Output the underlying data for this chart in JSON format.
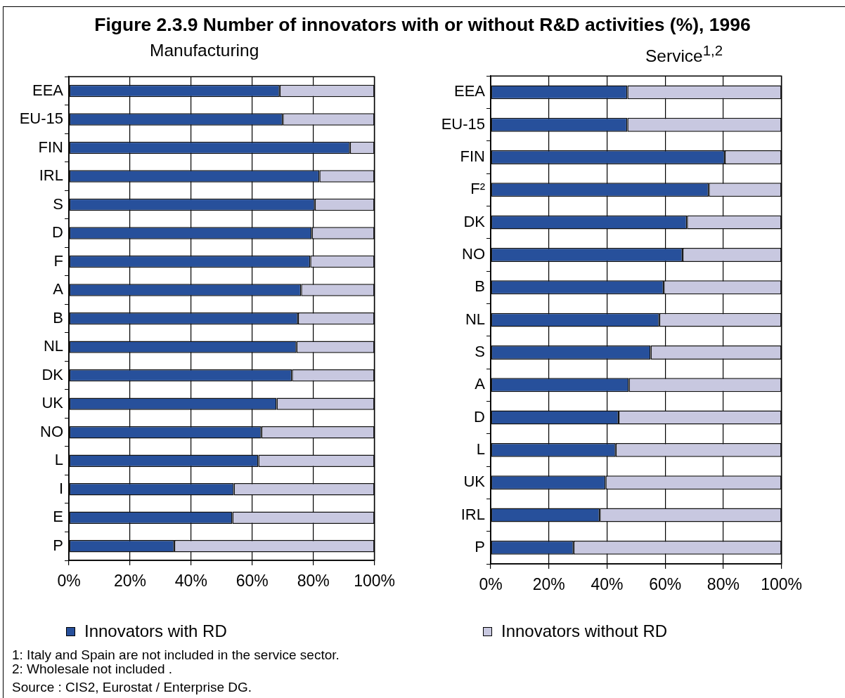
{
  "chart_data": [
    {
      "type": "bar",
      "title": "Figure 2.3.9 Number of innovators with or without R&D activities (%), 1996",
      "subtitle": "Manufacturing",
      "orientation": "horizontal",
      "stacked": true,
      "categories": [
        "EEA",
        "EU-15",
        "FIN",
        "IRL",
        "S",
        "D",
        "F",
        "A",
        "B",
        "NL",
        "DK",
        "UK",
        "NO",
        "L",
        "I",
        "E",
        "P"
      ],
      "series": [
        {
          "name": "Innovators with RD",
          "color": "#27509b",
          "values": [
            69,
            70,
            92,
            82,
            80.5,
            79.5,
            79,
            76,
            75,
            74.5,
            73,
            68,
            63,
            62,
            54,
            53.5,
            34.5
          ]
        },
        {
          "name": "Innovators without RD",
          "color": "#c8c8e0",
          "values": [
            31,
            30,
            8,
            18,
            19.5,
            20.5,
            21,
            24,
            25,
            25.5,
            27,
            32,
            37,
            38,
            46,
            46.5,
            65.5
          ]
        }
      ],
      "xlim": [
        0,
        100
      ],
      "xticks": [
        {
          "value": 0,
          "label": "0%"
        },
        {
          "value": 20,
          "label": "20%"
        },
        {
          "value": 40,
          "label": "40%"
        },
        {
          "value": 60,
          "label": "60%"
        },
        {
          "value": 80,
          "label": "80%"
        },
        {
          "value": 100,
          "label": "100%"
        }
      ],
      "grid": "x",
      "legend": "bottom",
      "annotations": [
        "1: Italy and Spain are not included in the service sector.",
        "2: Wholesale not included .",
        "Source : CIS2, Eurostat / Enterprise DG."
      ]
    },
    {
      "type": "bar",
      "subtitle": "Service$^{1,2}$",
      "orientation": "horizontal",
      "stacked": true,
      "categories": [
        "EEA",
        "EU-15",
        "FIN",
        "F²",
        "DK",
        "NO",
        "B",
        "NL",
        "S",
        "A",
        "D",
        "L",
        "UK",
        "IRL",
        "P"
      ],
      "series": [
        {
          "name": "Innovators with RD",
          "color": "#27509b",
          "values": [
            47,
            47,
            80.5,
            75,
            67.5,
            66,
            59.5,
            58,
            55,
            47.5,
            44,
            43,
            39.5,
            37.5,
            28.5
          ]
        },
        {
          "name": "Innovators without RD",
          "color": "#c8c8e0",
          "values": [
            53,
            53,
            19.5,
            25,
            32.5,
            34,
            40.5,
            42,
            45,
            52.5,
            56,
            57,
            60.5,
            62.5,
            71.5
          ]
        }
      ],
      "xlim": [
        0,
        100
      ],
      "xticks": [
        {
          "value": 0,
          "label": "0%"
        },
        {
          "value": 20,
          "label": "20%"
        },
        {
          "value": 40,
          "label": "40%"
        },
        {
          "value": 60,
          "label": "60%"
        },
        {
          "value": 80,
          "label": "80%"
        },
        {
          "value": 100,
          "label": "100%"
        }
      ],
      "grid": "x",
      "legend": "bottom"
    }
  ]
}
